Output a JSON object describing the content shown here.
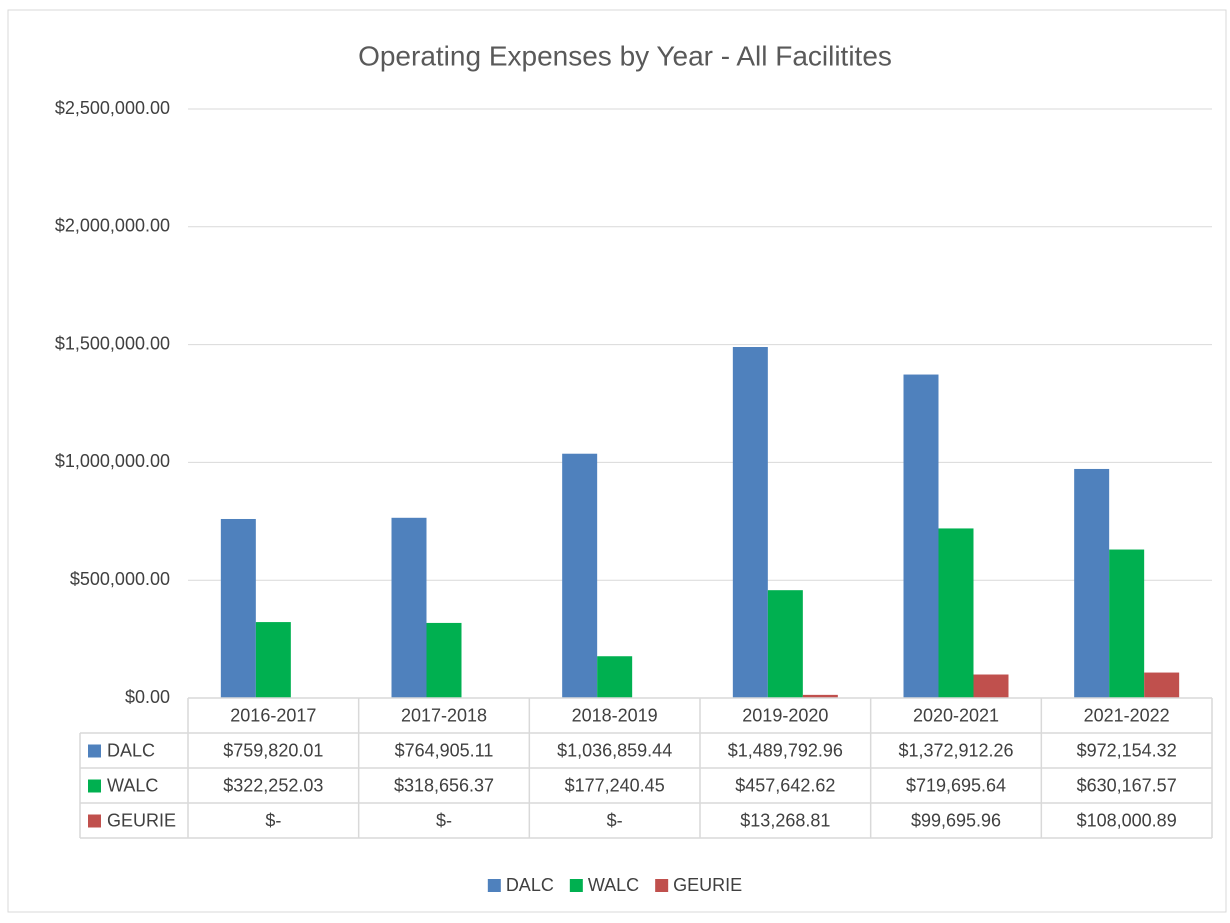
{
  "chart_data": {
    "type": "bar",
    "title": "Operating Expenses by Year - All Facilitites",
    "categories": [
      "2016-2017",
      "2017-2018",
      "2018-2019",
      "2019-2020",
      "2020-2021",
      "2021-2022"
    ],
    "series": [
      {
        "name": "DALC",
        "color": "#4f81bd",
        "values": [
          759820.01,
          764905.11,
          1036859.44,
          1489792.96,
          1372912.26,
          972154.32
        ],
        "value_labels": [
          "$759,820.01",
          "$764,905.11",
          "$1,036,859.44",
          "$1,489,792.96",
          "$1,372,912.26",
          "$972,154.32"
        ]
      },
      {
        "name": "WALC",
        "color": "#00b050",
        "values": [
          322252.03,
          318656.37,
          177240.45,
          457642.62,
          719695.64,
          630167.57
        ],
        "value_labels": [
          "$322,252.03",
          "$318,656.37",
          "$177,240.45",
          "$457,642.62",
          "$719,695.64",
          "$630,167.57"
        ]
      },
      {
        "name": "GEURIE",
        "color": "#c0504d",
        "values": [
          0,
          0,
          0,
          13268.81,
          99695.96,
          108000.89
        ],
        "value_labels": [
          "$-",
          "$-",
          "$-",
          "$13,268.81",
          "$99,695.96",
          "$108,000.89"
        ]
      }
    ],
    "ylim": [
      0,
      2500000
    ],
    "yticks": [
      {
        "value": 0,
        "label": "$0.00"
      },
      {
        "value": 500000,
        "label": "$500,000.00"
      },
      {
        "value": 1000000,
        "label": "$1,000,000.00"
      },
      {
        "value": 1500000,
        "label": "$1,500,000.00"
      },
      {
        "value": 2000000,
        "label": "$2,000,000.00"
      },
      {
        "value": 2500000,
        "label": "$2,500,000.00"
      }
    ],
    "grid": true,
    "legend": "bottom"
  }
}
